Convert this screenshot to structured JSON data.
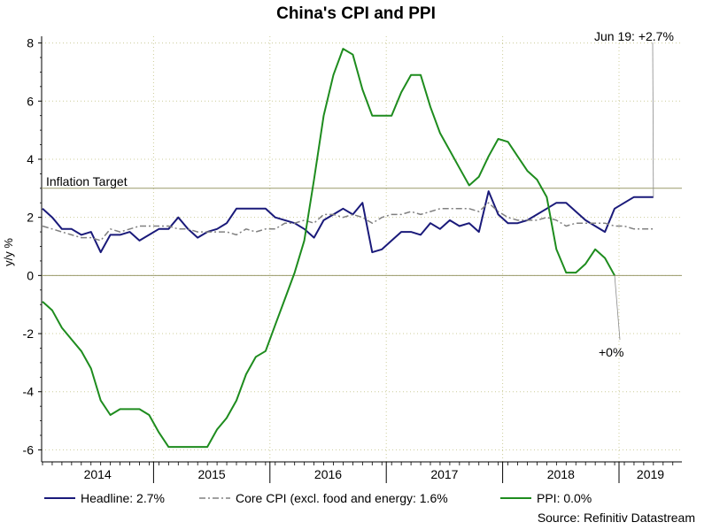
{
  "chart_data": {
    "type": "line",
    "title": "China's CPI and PPI",
    "ylabel": "y/y %",
    "xlabel": "",
    "ylim": [
      -6.2,
      8.2
    ],
    "yticks": [
      8,
      6,
      4,
      2,
      0,
      -2,
      -4,
      -6
    ],
    "x_year_labels": [
      "2014",
      "2015",
      "2016",
      "2017",
      "2018",
      "2019"
    ],
    "x_start": "Jan 2014",
    "x_end": "Jun 2019",
    "grid": true,
    "reference_line": {
      "label": "Inflation Target",
      "value": 3
    },
    "annotations": [
      {
        "text": "Jun 19: +2.7%",
        "series": "Headline",
        "value": 2.7
      },
      {
        "text": "+0%",
        "series": "PPI",
        "value": 0.0
      }
    ],
    "series": [
      {
        "name": "Headline: 2.7%",
        "color": "#1a1a7a",
        "style": "solid",
        "values": [
          2.3,
          2.0,
          1.6,
          1.6,
          1.4,
          1.5,
          0.8,
          1.4,
          1.4,
          1.5,
          1.2,
          1.4,
          1.6,
          1.6,
          2.0,
          1.6,
          1.3,
          1.5,
          1.6,
          1.8,
          2.3,
          2.3,
          2.3,
          2.3,
          2.0,
          1.9,
          1.8,
          1.6,
          1.3,
          1.9,
          2.1,
          2.3,
          2.1,
          2.5,
          0.8,
          0.9,
          1.2,
          1.5,
          1.5,
          1.4,
          1.8,
          1.6,
          1.9,
          1.7,
          1.8,
          1.5,
          2.9,
          2.1,
          1.8,
          1.8,
          1.9,
          2.1,
          2.3,
          2.5,
          2.5,
          2.2,
          1.9,
          1.7,
          1.5,
          2.3,
          2.5,
          2.7,
          2.7,
          2.7
        ]
      },
      {
        "name": "Core CPI (excl. food and energy: 1.6%",
        "color": "#808080",
        "style": "dashdot",
        "values": [
          1.7,
          1.6,
          1.5,
          1.4,
          1.3,
          1.3,
          1.2,
          1.6,
          1.5,
          1.6,
          1.7,
          1.7,
          1.7,
          1.7,
          1.6,
          1.6,
          1.5,
          1.5,
          1.5,
          1.5,
          1.4,
          1.6,
          1.5,
          1.6,
          1.6,
          1.8,
          1.8,
          1.9,
          1.8,
          2.1,
          2.1,
          2.0,
          2.1,
          2.0,
          1.8,
          2.0,
          2.1,
          2.1,
          2.2,
          2.1,
          2.2,
          2.3,
          2.3,
          2.3,
          2.3,
          2.2,
          2.5,
          2.2,
          2.0,
          1.9,
          1.9,
          1.9,
          2.0,
          1.9,
          1.7,
          1.8,
          1.8,
          1.8,
          1.8,
          1.7,
          1.7,
          1.6,
          1.6,
          1.6
        ]
      },
      {
        "name": "PPI: 0.0%",
        "color": "#1e8c1e",
        "style": "solid",
        "values": [
          -0.9,
          -1.2,
          -1.8,
          -2.2,
          -2.6,
          -3.2,
          -4.3,
          -4.8,
          -4.6,
          -4.6,
          -4.6,
          -4.8,
          -5.4,
          -5.9,
          -5.9,
          -5.9,
          -5.9,
          -5.9,
          -5.3,
          -4.9,
          -4.3,
          -3.4,
          -2.8,
          -2.6,
          -1.7,
          -0.8,
          0.1,
          1.2,
          3.3,
          5.5,
          6.9,
          7.8,
          7.6,
          6.4,
          5.5,
          5.5,
          5.5,
          6.3,
          6.9,
          6.9,
          5.8,
          4.9,
          4.3,
          3.7,
          3.1,
          3.4,
          4.1,
          4.7,
          4.6,
          4.1,
          3.6,
          3.3,
          2.7,
          0.9,
          0.1,
          0.1,
          0.4,
          0.9,
          0.6,
          0.0
        ]
      }
    ]
  },
  "legend": {
    "items": [
      {
        "label": "Headline: 2.7%"
      },
      {
        "label": "Core CPI (excl. food and energy: 1.6%"
      },
      {
        "label": "PPI: 0.0%"
      }
    ]
  },
  "source": "Source: Refinitiv Datastream"
}
